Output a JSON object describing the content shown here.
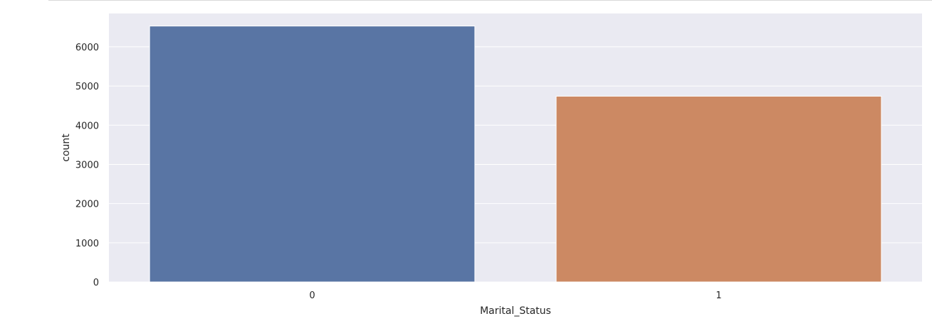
{
  "chart_data": {
    "type": "bar",
    "title": "",
    "xlabel": "Marital_Status",
    "ylabel": "count",
    "categories": [
      "0",
      "1"
    ],
    "values": [
      6530,
      4740
    ],
    "bar_colors": [
      "#5975a4",
      "#cc8963"
    ],
    "ylim": [
      0,
      6850
    ],
    "yticks": [
      0,
      1000,
      2000,
      3000,
      4000,
      5000,
      6000
    ],
    "grid": true,
    "legend": "none",
    "style": {
      "plot_background": "#eaeaf2",
      "grid_color": "#ffffff",
      "bar_edge": "#ffffff"
    }
  }
}
